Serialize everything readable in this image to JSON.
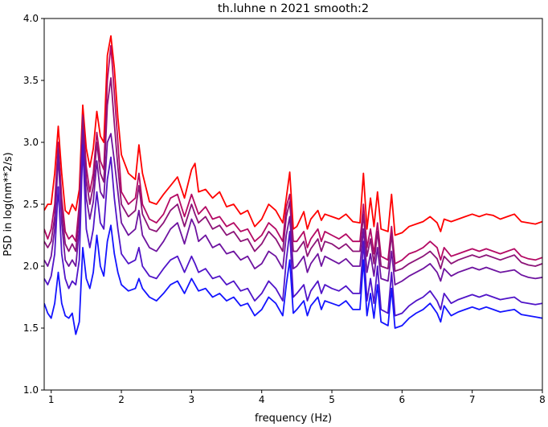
{
  "chart_data": {
    "type": "line",
    "title": "th.luhne n 2021 smooth:2",
    "xlabel": "frequency (Hz)",
    "ylabel": "PSD in log(nm**2/s)",
    "xlim": [
      0.9,
      8.0
    ],
    "ylim": [
      1.0,
      4.0
    ],
    "x_ticks": [
      1,
      2,
      3,
      4,
      5,
      6,
      7,
      8
    ],
    "y_ticks": [
      1.0,
      1.5,
      2.0,
      2.5,
      3.0,
      3.5,
      4.0
    ],
    "x_tick_labels": [
      "1",
      "2",
      "3",
      "4",
      "5",
      "6",
      "7",
      "8"
    ],
    "y_tick_labels": [
      "1.0",
      "1.5",
      "2.0",
      "2.5",
      "3.0",
      "3.5",
      "4.0"
    ],
    "grid": false,
    "legend": "none",
    "x": [
      0.9,
      0.95,
      1.0,
      1.05,
      1.1,
      1.15,
      1.2,
      1.25,
      1.3,
      1.35,
      1.4,
      1.45,
      1.5,
      1.55,
      1.6,
      1.65,
      1.7,
      1.75,
      1.8,
      1.85,
      1.9,
      1.95,
      2.0,
      2.1,
      2.2,
      2.25,
      2.3,
      2.4,
      2.5,
      2.6,
      2.7,
      2.8,
      2.9,
      3.0,
      3.05,
      3.1,
      3.2,
      3.3,
      3.4,
      3.5,
      3.6,
      3.7,
      3.8,
      3.9,
      4.0,
      4.1,
      4.2,
      4.3,
      4.35,
      4.4,
      4.45,
      4.5,
      4.6,
      4.65,
      4.7,
      4.8,
      4.85,
      4.9,
      5.0,
      5.1,
      5.2,
      5.3,
      5.4,
      5.45,
      5.5,
      5.55,
      5.6,
      5.65,
      5.7,
      5.8,
      5.85,
      5.9,
      6.0,
      6.1,
      6.2,
      6.3,
      6.4,
      6.5,
      6.55,
      6.6,
      6.7,
      6.8,
      6.9,
      7.0,
      7.1,
      7.2,
      7.3,
      7.4,
      7.5,
      7.6,
      7.7,
      7.8,
      7.9,
      8.0
    ],
    "series": [
      {
        "color": "#ff0000",
        "values": [
          2.45,
          2.5,
          2.5,
          2.75,
          3.13,
          2.75,
          2.45,
          2.42,
          2.5,
          2.45,
          2.62,
          3.3,
          2.95,
          2.8,
          2.95,
          3.25,
          3.05,
          3.0,
          3.7,
          3.86,
          3.6,
          3.2,
          2.9,
          2.75,
          2.7,
          2.98,
          2.75,
          2.52,
          2.5,
          2.58,
          2.65,
          2.72,
          2.55,
          2.78,
          2.83,
          2.6,
          2.62,
          2.55,
          2.6,
          2.48,
          2.5,
          2.42,
          2.45,
          2.32,
          2.38,
          2.5,
          2.45,
          2.35,
          2.55,
          2.76,
          2.3,
          2.32,
          2.44,
          2.3,
          2.38,
          2.45,
          2.37,
          2.42,
          2.4,
          2.38,
          2.42,
          2.36,
          2.35,
          2.75,
          2.3,
          2.55,
          2.32,
          2.6,
          2.3,
          2.28,
          2.58,
          2.25,
          2.27,
          2.32,
          2.34,
          2.36,
          2.4,
          2.35,
          2.28,
          2.38,
          2.36,
          2.38,
          2.4,
          2.42,
          2.4,
          2.42,
          2.41,
          2.38,
          2.4,
          2.42,
          2.36,
          2.35,
          2.34,
          2.36
        ]
      },
      {
        "color": "#b40a64",
        "values": [
          2.3,
          2.22,
          2.3,
          2.5,
          3.0,
          2.55,
          2.28,
          2.22,
          2.25,
          2.2,
          2.5,
          3.22,
          2.8,
          2.6,
          2.75,
          3.08,
          2.85,
          2.78,
          3.5,
          3.78,
          3.4,
          3.0,
          2.6,
          2.5,
          2.55,
          2.75,
          2.5,
          2.38,
          2.35,
          2.42,
          2.55,
          2.58,
          2.4,
          2.58,
          2.5,
          2.42,
          2.48,
          2.38,
          2.4,
          2.32,
          2.35,
          2.28,
          2.3,
          2.2,
          2.25,
          2.35,
          2.3,
          2.2,
          2.48,
          2.58,
          2.2,
          2.2,
          2.28,
          2.15,
          2.22,
          2.3,
          2.2,
          2.28,
          2.25,
          2.22,
          2.26,
          2.2,
          2.2,
          2.5,
          2.15,
          2.3,
          2.1,
          2.35,
          2.08,
          2.05,
          2.32,
          2.02,
          2.05,
          2.1,
          2.12,
          2.15,
          2.2,
          2.15,
          2.05,
          2.15,
          2.08,
          2.1,
          2.12,
          2.14,
          2.12,
          2.14,
          2.12,
          2.1,
          2.12,
          2.14,
          2.08,
          2.06,
          2.05,
          2.07
        ]
      },
      {
        "color": "#8c1478",
        "values": [
          2.2,
          2.15,
          2.2,
          2.4,
          2.95,
          2.45,
          2.18,
          2.12,
          2.18,
          2.12,
          2.42,
          3.2,
          2.7,
          2.5,
          2.65,
          3.0,
          2.75,
          2.68,
          3.3,
          3.52,
          3.15,
          2.8,
          2.5,
          2.4,
          2.45,
          2.65,
          2.42,
          2.3,
          2.28,
          2.35,
          2.45,
          2.5,
          2.32,
          2.5,
          2.42,
          2.35,
          2.4,
          2.3,
          2.33,
          2.25,
          2.28,
          2.2,
          2.22,
          2.12,
          2.18,
          2.28,
          2.22,
          2.12,
          2.4,
          2.52,
          2.12,
          2.12,
          2.2,
          2.08,
          2.14,
          2.22,
          2.12,
          2.2,
          2.18,
          2.14,
          2.18,
          2.12,
          2.12,
          2.42,
          2.08,
          2.22,
          2.02,
          2.28,
          2.0,
          1.98,
          2.26,
          1.96,
          1.98,
          2.02,
          2.05,
          2.08,
          2.12,
          2.06,
          1.98,
          2.08,
          2.02,
          2.05,
          2.07,
          2.09,
          2.07,
          2.09,
          2.07,
          2.05,
          2.07,
          2.09,
          2.03,
          2.01,
          2.0,
          2.02
        ]
      },
      {
        "color": "#6e14a0",
        "values": [
          2.05,
          2.0,
          2.08,
          2.3,
          2.9,
          2.35,
          2.05,
          2.0,
          2.05,
          2.0,
          2.3,
          3.1,
          2.55,
          2.38,
          2.52,
          2.85,
          2.6,
          2.55,
          3.0,
          3.07,
          2.85,
          2.6,
          2.35,
          2.25,
          2.3,
          2.45,
          2.25,
          2.15,
          2.12,
          2.2,
          2.3,
          2.35,
          2.18,
          2.38,
          2.32,
          2.2,
          2.25,
          2.15,
          2.18,
          2.1,
          2.12,
          2.05,
          2.08,
          1.98,
          2.02,
          2.12,
          2.08,
          1.98,
          2.25,
          2.4,
          1.98,
          2.0,
          2.08,
          1.95,
          2.02,
          2.1,
          2.0,
          2.08,
          2.05,
          2.02,
          2.06,
          2.0,
          2.0,
          2.3,
          1.95,
          2.1,
          1.92,
          2.15,
          1.9,
          1.88,
          2.12,
          1.85,
          1.88,
          1.92,
          1.95,
          1.98,
          2.02,
          1.95,
          1.88,
          1.98,
          1.92,
          1.95,
          1.97,
          1.99,
          1.97,
          1.99,
          1.97,
          1.95,
          1.96,
          1.97,
          1.93,
          1.91,
          1.9,
          1.91
        ]
      },
      {
        "color": "#5014c8",
        "values": [
          1.9,
          1.85,
          1.92,
          2.1,
          2.64,
          2.1,
          1.9,
          1.82,
          1.88,
          1.85,
          2.05,
          2.98,
          2.3,
          2.15,
          2.3,
          2.6,
          2.35,
          2.3,
          2.7,
          2.88,
          2.55,
          2.3,
          2.1,
          2.02,
          2.05,
          2.15,
          2.0,
          1.92,
          1.9,
          1.98,
          2.05,
          2.08,
          1.95,
          2.08,
          2.02,
          1.95,
          1.98,
          1.9,
          1.92,
          1.85,
          1.88,
          1.8,
          1.82,
          1.72,
          1.78,
          1.88,
          1.82,
          1.72,
          2.05,
          2.28,
          1.75,
          1.78,
          1.85,
          1.72,
          1.8,
          1.88,
          1.78,
          1.85,
          1.82,
          1.8,
          1.84,
          1.78,
          1.78,
          2.2,
          1.72,
          1.9,
          1.7,
          2.0,
          1.65,
          1.62,
          1.95,
          1.6,
          1.62,
          1.68,
          1.72,
          1.75,
          1.8,
          1.72,
          1.65,
          1.78,
          1.7,
          1.73,
          1.75,
          1.77,
          1.75,
          1.77,
          1.75,
          1.73,
          1.74,
          1.75,
          1.71,
          1.7,
          1.69,
          1.7
        ]
      },
      {
        "color": "#1414ff",
        "values": [
          1.7,
          1.62,
          1.58,
          1.7,
          1.95,
          1.7,
          1.6,
          1.58,
          1.62,
          1.45,
          1.55,
          2.15,
          1.9,
          1.82,
          1.95,
          2.25,
          2.0,
          1.92,
          2.2,
          2.33,
          2.1,
          1.95,
          1.85,
          1.8,
          1.82,
          1.9,
          1.82,
          1.75,
          1.72,
          1.78,
          1.85,
          1.88,
          1.78,
          1.9,
          1.85,
          1.8,
          1.82,
          1.75,
          1.78,
          1.72,
          1.75,
          1.68,
          1.7,
          1.6,
          1.65,
          1.75,
          1.7,
          1.6,
          1.85,
          2.05,
          1.62,
          1.65,
          1.72,
          1.6,
          1.68,
          1.75,
          1.65,
          1.72,
          1.7,
          1.68,
          1.72,
          1.65,
          1.65,
          2.05,
          1.6,
          1.78,
          1.58,
          1.85,
          1.55,
          1.52,
          1.82,
          1.5,
          1.52,
          1.58,
          1.62,
          1.65,
          1.7,
          1.62,
          1.55,
          1.68,
          1.6,
          1.63,
          1.65,
          1.67,
          1.65,
          1.67,
          1.65,
          1.63,
          1.64,
          1.65,
          1.61,
          1.6,
          1.59,
          1.58
        ]
      }
    ]
  }
}
